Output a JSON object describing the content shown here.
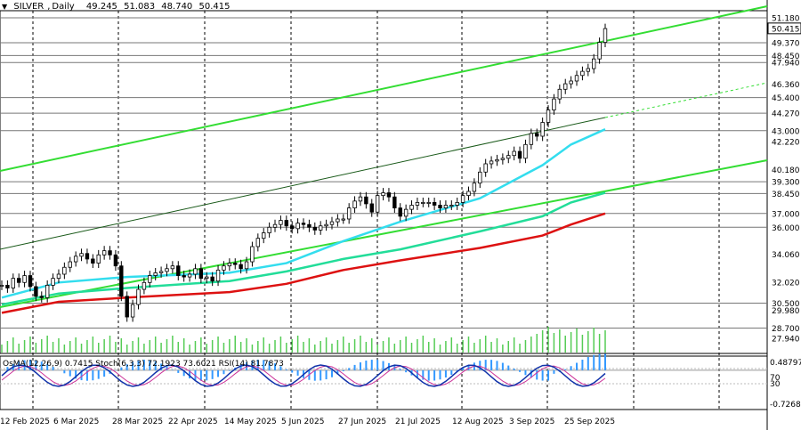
{
  "header": {
    "symbol": "SILVER",
    "timeframe": "Daily",
    "open": "49.245",
    "high": "51.083",
    "low": "48.740",
    "close": "50.415"
  },
  "indicator_header": {
    "osma": "OsMA(12,26,9) 0.7415",
    "stoch": "Stoch(6,3,3) 72.1923 73.6021",
    "rsi": "RSI(14) 81.7873"
  },
  "colors": {
    "channel": "#33dd33",
    "ema_fast": "#33ddee",
    "ema_mid": "#22dd99",
    "ema_slow": "#dd1111",
    "level_line": "#777777",
    "candle": "#000000",
    "volume": "#55cc55",
    "osma_hist": "#3399ff",
    "stoch_main": "#1133aa",
    "stoch_signal": "#cc3399"
  },
  "chart_data": {
    "type": "candlestick",
    "title": "SILVER, Daily",
    "y_ticks": [
      "51.180",
      "50.415",
      "49.370",
      "48.450",
      "47.940",
      "46.360",
      "45.400",
      "44.270",
      "43.000",
      "42.220",
      "40.180",
      "39.300",
      "38.450",
      "37.000",
      "36.000",
      "34.060",
      "32.020",
      "30.500",
      "29.980",
      "28.700",
      "27.940"
    ],
    "price_axis_highlight": "50.415",
    "levels": [
      51.18,
      49.37,
      48.45,
      47.94,
      45.4,
      44.27,
      43.0,
      39.3,
      38.45,
      37.0,
      36.0,
      30.5,
      28.7
    ],
    "x_ticks": [
      "12 Feb 2025",
      "6 Mar 2025",
      "28 Mar 2025",
      "22 Apr 2025",
      "14 May 2025",
      "5 Jun 2025",
      "27 Jun 2025",
      "21 Jul 2025",
      "12 Aug 2025",
      "3 Sep 2025",
      "25 Sep 2025"
    ],
    "sub_axis_ticks": [
      "0.48797",
      "70",
      "30",
      "-0.72689"
    ],
    "close_series": [
      31.8,
      31.6,
      32.3,
      32.0,
      32.5,
      31.7,
      31.0,
      30.9,
      31.8,
      32.3,
      32.6,
      33.1,
      33.5,
      33.9,
      34.1,
      33.7,
      33.4,
      34.0,
      34.3,
      34.0,
      33.2,
      31.0,
      29.5,
      30.4,
      31.5,
      32.0,
      32.5,
      32.7,
      32.8,
      33.0,
      33.2,
      32.5,
      32.4,
      32.6,
      33.0,
      32.3,
      32.4,
      32.1,
      32.9,
      33.2,
      33.4,
      33.3,
      33.0,
      33.5,
      34.6,
      35.2,
      35.6,
      36.0,
      36.2,
      36.5,
      36.1,
      35.9,
      36.3,
      36.2,
      36.0,
      35.8,
      36.1,
      36.2,
      36.4,
      36.6,
      36.6,
      37.4,
      37.9,
      38.2,
      37.7,
      37.1,
      38.3,
      38.5,
      38.2,
      37.4,
      36.8,
      37.3,
      37.6,
      37.8,
      37.8,
      37.8,
      37.6,
      37.4,
      37.6,
      37.6,
      37.8,
      38.3,
      38.6,
      39.2,
      40.0,
      40.6,
      40.8,
      40.9,
      41.0,
      41.2,
      41.5,
      41.0,
      42.0,
      42.8,
      42.6,
      43.6,
      44.5,
      45.3,
      46.0,
      46.4,
      46.6,
      47.0,
      47.3,
      47.5,
      48.2,
      49.4,
      50.4
    ],
    "ema_fast": {
      "x": [
        0,
        10,
        22,
        40,
        50,
        60,
        70,
        84,
        95,
        100,
        106
      ],
      "y": [
        30.9,
        32.0,
        32.4,
        32.7,
        33.4,
        35.0,
        36.4,
        38.1,
        40.5,
        42.0,
        43.1
      ]
    },
    "ema_mid": {
      "x": [
        0,
        10,
        22,
        40,
        50,
        60,
        70,
        84,
        95,
        100,
        106
      ],
      "y": [
        30.4,
        31.2,
        31.6,
        32.1,
        32.8,
        33.7,
        34.4,
        35.7,
        36.8,
        37.8,
        38.5
      ]
    },
    "ema_slow": {
      "x": [
        0,
        10,
        22,
        40,
        50,
        60,
        70,
        84,
        95,
        100,
        106
      ],
      "y": [
        29.8,
        30.6,
        30.9,
        31.3,
        31.9,
        32.9,
        33.6,
        34.5,
        35.4,
        36.2,
        37.0
      ]
    }
  }
}
